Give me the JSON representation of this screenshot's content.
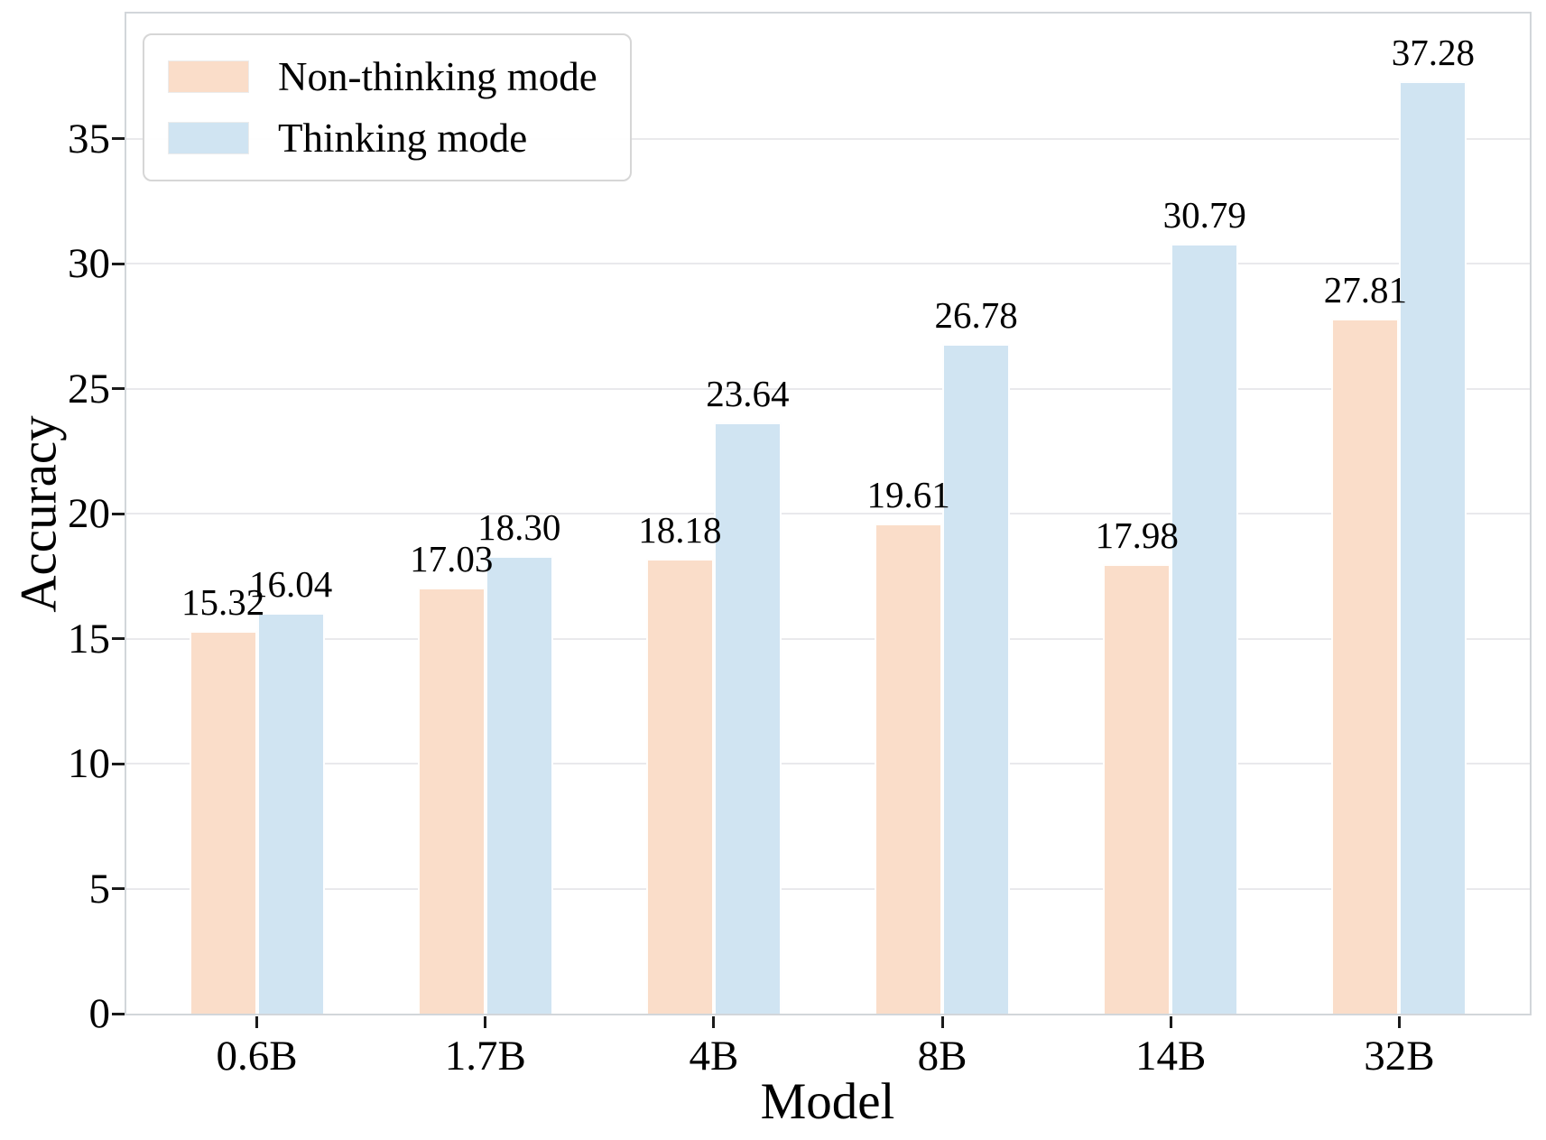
{
  "chart_data": {
    "type": "bar",
    "categories": [
      "0.6B",
      "1.7B",
      "4B",
      "8B",
      "14B",
      "32B"
    ],
    "series": [
      {
        "name": "Non-thinking mode",
        "color": "#faddc9",
        "values": [
          15.32,
          17.03,
          18.18,
          19.61,
          17.98,
          27.81
        ]
      },
      {
        "name": "Thinking mode",
        "color": "#d0e4f2",
        "values": [
          16.04,
          18.3,
          23.64,
          26.78,
          30.79,
          37.28
        ]
      }
    ],
    "title": "",
    "xlabel": "Model",
    "ylabel": "Accuracy",
    "ylim": [
      0,
      40
    ],
    "yticks": [
      0,
      5,
      10,
      15,
      20,
      25,
      30,
      35
    ],
    "grid": true,
    "legend_position": "upper left",
    "value_labels_decimals": 2
  },
  "colors": {
    "grid": "#e9e9ec",
    "spine": "#d2d6da",
    "tick_mark": "#1a1a1a",
    "text": "#000000",
    "legend_border": "#d6d6d6",
    "bar_edge": "#ffffff"
  }
}
